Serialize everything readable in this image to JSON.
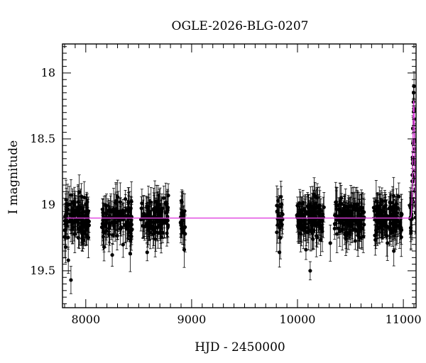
{
  "chart_data": {
    "type": "scatter",
    "title": "OGLE-2026-BLG-0207",
    "xlabel": "HJD - 2450000",
    "ylabel": "I magnitude",
    "xlim": [
      7780,
      11120
    ],
    "ylim": [
      19.78,
      17.78
    ],
    "y_inverted": true,
    "xticks": [
      8000,
      9000,
      10000,
      11000
    ],
    "yticks": [
      18,
      18.5,
      19,
      19.5
    ],
    "ytick_labels": [
      "18",
      "18.5",
      "19",
      "19.5"
    ],
    "colors": {
      "data": "#000000",
      "model": "#e040e0"
    },
    "model": {
      "name": "",
      "baseline_mag": 19.1,
      "peak_time": 11098,
      "peak_mag": 18.21,
      "width": 12
    },
    "series": [
      {
        "name": "",
        "seasons": [
          {
            "x_range": [
              7800,
              8040
            ],
            "n": 120
          },
          {
            "x_range": [
              8150,
              8440
            ],
            "n": 120
          },
          {
            "x_range": [
              8520,
              8780
            ],
            "n": 110
          },
          {
            "x_range": [
              8890,
              8940
            ],
            "n": 20
          },
          {
            "x_range": [
              9800,
              9860
            ],
            "n": 20
          },
          {
            "x_range": [
              9990,
              10250
            ],
            "n": 120
          },
          {
            "x_range": [
              10350,
              10630
            ],
            "n": 130
          },
          {
            "x_range": [
              10720,
              10990
            ],
            "n": 130
          },
          {
            "x_range": [
              11060,
              11120
            ],
            "n": 35
          }
        ],
        "points": [
          {
            "x": 7835,
            "y": 19.42
          },
          {
            "x": 7860,
            "y": 19.57
          },
          {
            "x": 7810,
            "y": 19.32
          },
          {
            "x": 8250,
            "y": 19.38
          },
          {
            "x": 8420,
            "y": 19.37
          },
          {
            "x": 8580,
            "y": 19.36
          },
          {
            "x": 8930,
            "y": 19.34
          },
          {
            "x": 9830,
            "y": 19.36
          },
          {
            "x": 10080,
            "y": 19.34
          },
          {
            "x": 10120,
            "y": 19.5
          },
          {
            "x": 10310,
            "y": 19.29
          },
          {
            "x": 10910,
            "y": 19.35
          },
          {
            "x": 10850,
            "y": 19.29
          },
          {
            "x": 11097,
            "y": 18.15
          },
          {
            "x": 11095,
            "y": 18.22
          },
          {
            "x": 11100,
            "y": 18.27
          },
          {
            "x": 11103,
            "y": 18.35
          },
          {
            "x": 11090,
            "y": 18.42
          },
          {
            "x": 11106,
            "y": 18.52
          },
          {
            "x": 11087,
            "y": 18.64
          },
          {
            "x": 11110,
            "y": 18.68
          },
          {
            "x": 11084,
            "y": 18.82
          },
          {
            "x": 11114,
            "y": 18.88
          },
          {
            "x": 11080,
            "y": 18.95
          },
          {
            "x": 11118,
            "y": 19.01
          }
        ]
      }
    ]
  }
}
